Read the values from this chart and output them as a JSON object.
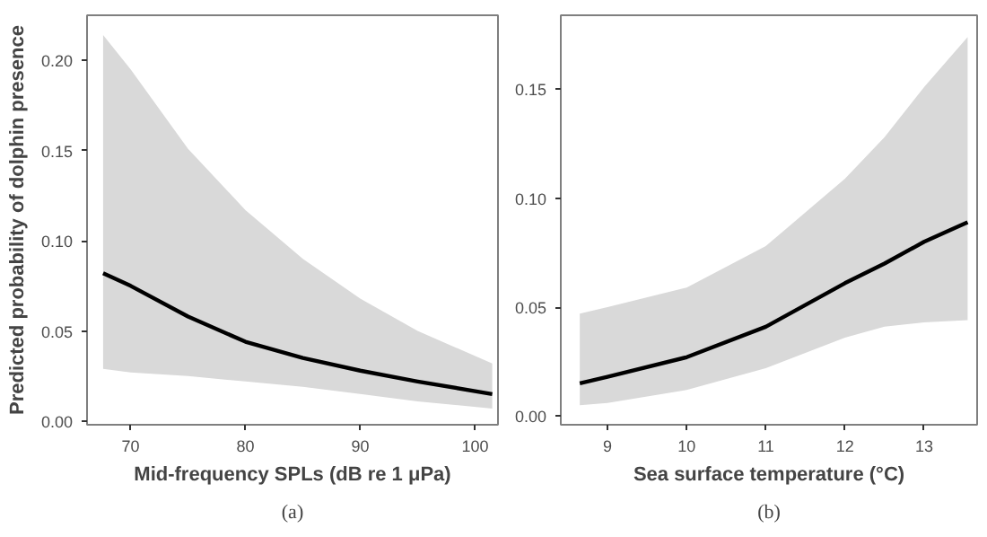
{
  "chart_data": [
    {
      "type": "line",
      "xlabel": "Mid-frequency SPLs (dB re 1 μPa)",
      "ylabel": "Predicted probability of dolphin presence",
      "annotations": [
        "(a)"
      ],
      "x": [
        67.6,
        70,
        75,
        80,
        85,
        90,
        95,
        101.5
      ],
      "series": [
        {
          "color": "#000000",
          "values": [
            0.082,
            0.075,
            0.058,
            0.044,
            0.035,
            0.028,
            0.022,
            0.015
          ],
          "lower": [
            0.029,
            0.027,
            0.025,
            0.022,
            0.019,
            0.015,
            0.011,
            0.007
          ],
          "upper": [
            0.214,
            0.195,
            0.151,
            0.117,
            0.09,
            0.068,
            0.05,
            0.032
          ]
        }
      ],
      "xlim": [
        66.2,
        102.0
      ],
      "ylim": [
        -0.002,
        0.225
      ],
      "xticks": [
        70,
        80,
        90,
        100
      ],
      "yticks": [
        {
          "value": 0,
          "label": "0.00"
        },
        {
          "value": 0.05,
          "label": "0.05"
        },
        {
          "value": 0.1,
          "label": "0.10"
        },
        {
          "value": 0.15,
          "label": "0.15"
        },
        {
          "value": 0.2,
          "label": "0.20"
        }
      ],
      "grid": false
    },
    {
      "type": "line",
      "xlabel": "Sea surface temperature (°C)",
      "annotations": [
        "(b)"
      ],
      "x": [
        8.65,
        9,
        10,
        11,
        12,
        12.5,
        13,
        13.55
      ],
      "series": [
        {
          "color": "#000000",
          "values": [
            0.015,
            0.018,
            0.027,
            0.041,
            0.061,
            0.07,
            0.08,
            0.089
          ],
          "lower": [
            0.005,
            0.006,
            0.012,
            0.022,
            0.036,
            0.041,
            0.043,
            0.044
          ],
          "upper": [
            0.047,
            0.05,
            0.059,
            0.078,
            0.109,
            0.128,
            0.151,
            0.174
          ]
        }
      ],
      "xlim": [
        8.41,
        13.67
      ],
      "ylim": [
        -0.004,
        0.184
      ],
      "xticks": [
        9,
        10,
        11,
        12,
        13
      ],
      "yticks": [
        {
          "value": 0,
          "label": "0.00"
        },
        {
          "value": 0.05,
          "label": "0.05"
        },
        {
          "value": 0.1,
          "label": "0.10"
        },
        {
          "value": 0.15,
          "label": "0.15"
        }
      ],
      "grid": false
    }
  ]
}
